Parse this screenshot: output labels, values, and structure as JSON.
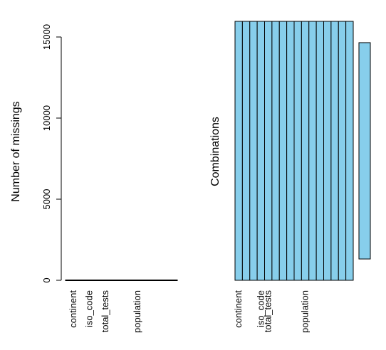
{
  "chart_data": [
    {
      "type": "bar",
      "ylabel": "Number of missings",
      "xlabel": "",
      "ylim": [
        0,
        15000
      ],
      "yticks": [
        0,
        5000,
        10000,
        15000
      ],
      "categories": [
        "",
        "",
        "",
        "",
        "",
        "",
        ""
      ],
      "category_labels": [
        {
          "label": "continent",
          "index": 0
        },
        {
          "label": "iso_code",
          "index": 1
        },
        {
          "label": "total_tests",
          "index": 2
        },
        {
          "label": "population",
          "index": 4
        }
      ],
      "values": [
        0,
        0,
        0,
        0,
        0,
        0,
        0
      ],
      "grid": false
    },
    {
      "type": "bar",
      "ylabel": "Combinations",
      "xlabel": "",
      "ylim": [
        0,
        15800
      ],
      "columns": 16,
      "fill": "#87CEEB",
      "column_labels": [
        {
          "label": "continent",
          "index": 0
        },
        {
          "label": "iso_code",
          "index": 3
        },
        {
          "label": "total_tests",
          "index": 4
        },
        {
          "label": "population",
          "index": 9
        }
      ],
      "combination_bar": {
        "range": [
          1300,
          14500
        ]
      },
      "grid": false
    }
  ]
}
